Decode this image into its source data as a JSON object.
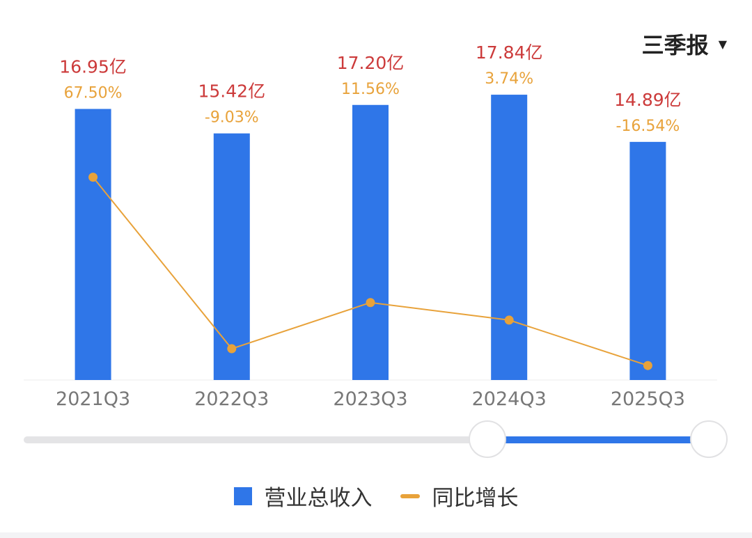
{
  "period_selector": {
    "label": "三季报",
    "caret_icon": "caret-down-icon"
  },
  "colors": {
    "bar": "#2f76e8",
    "line": "#e8a23a",
    "value_label": "#cc3a3a",
    "axis_label": "#777777"
  },
  "chart_data": {
    "type": "bar",
    "categories": [
      "2021Q3",
      "2022Q3",
      "2023Q3",
      "2024Q3",
      "2025Q3"
    ],
    "series": [
      {
        "name": "营业总收入",
        "type": "bar",
        "unit": "亿",
        "values": [
          16.95,
          15.42,
          17.2,
          17.84,
          14.89
        ],
        "labels": [
          "16.95亿",
          "15.42亿",
          "17.20亿",
          "17.84亿",
          "14.89亿"
        ]
      },
      {
        "name": "同比增长",
        "type": "line",
        "unit": "%",
        "values": [
          67.5,
          -9.03,
          11.56,
          3.74,
          -16.54
        ],
        "labels": [
          "67.50%",
          "-9.03%",
          "11.56%",
          "3.74%",
          "-16.54%"
        ]
      }
    ],
    "ylim_bar": [
      0,
      18.8
    ],
    "ylim_line": [
      -23,
      100
    ],
    "grid": false,
    "legend_position": "bottom"
  },
  "legend": {
    "items": [
      {
        "label": "营业总收入"
      },
      {
        "label": "同比增长"
      }
    ]
  }
}
